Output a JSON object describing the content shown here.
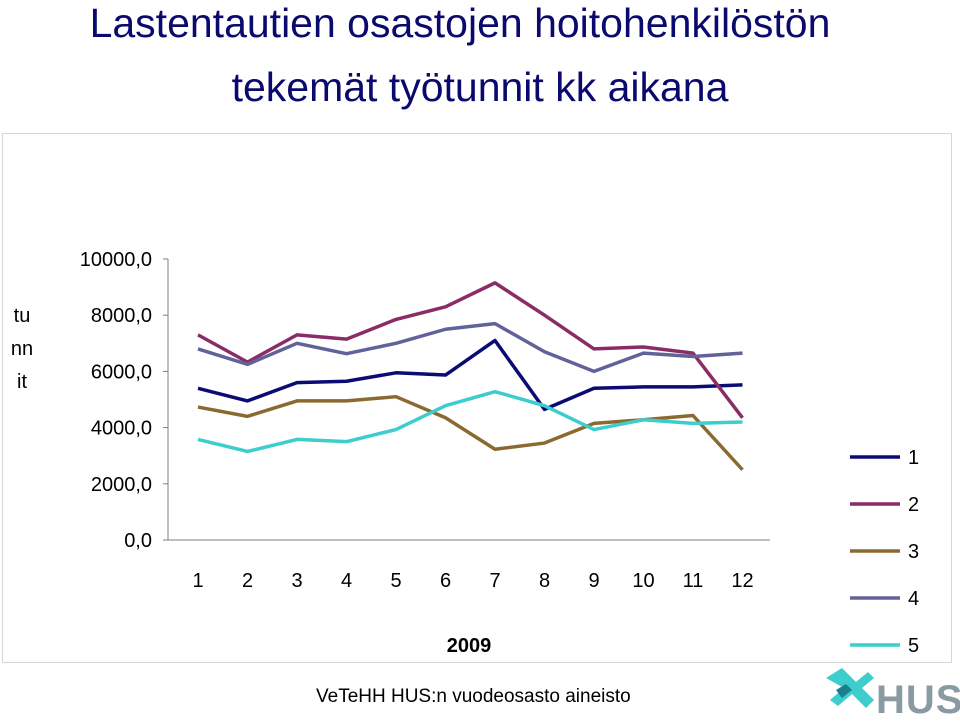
{
  "chart_data": {
    "type": "line",
    "title": "Lastentautien osastojen hoitohenkilöstön tekemät työtunnit kk aikana",
    "title_line1": "Lastentautien osastojen hoitohenkilöstön",
    "title_line2": "tekemät työtunnit kk aikana",
    "xlabel": "2009",
    "ylabel": "tunnit",
    "x": [
      1,
      2,
      3,
      4,
      5,
      6,
      7,
      8,
      9,
      10,
      11,
      12
    ],
    "ylim": [
      0,
      10000
    ],
    "yticks": [
      "0,0",
      "2000,0",
      "4000,0",
      "6000,0",
      "8000,0",
      "10000,0"
    ],
    "grid": false,
    "legend_position": "right",
    "series": [
      {
        "name": "1",
        "color": "#0b0b74",
        "values": [
          5400,
          4950,
          5600,
          5650,
          5950,
          5870,
          7100,
          4650,
          5400,
          5450,
          5450,
          5520
        ]
      },
      {
        "name": "2",
        "color": "#8a2c66",
        "values": [
          7300,
          6330,
          7300,
          7150,
          7850,
          8300,
          9150,
          8000,
          6800,
          6870,
          6650,
          4350
        ]
      },
      {
        "name": "3",
        "color": "#8a6a30",
        "values": [
          4730,
          4400,
          4950,
          4950,
          5100,
          4350,
          3230,
          3450,
          4150,
          4280,
          4430,
          2500
        ]
      },
      {
        "name": "4",
        "color": "#62629b",
        "values": [
          6800,
          6250,
          7000,
          6630,
          7000,
          7500,
          7700,
          6700,
          6000,
          6650,
          6530,
          6650
        ]
      },
      {
        "name": "5",
        "color": "#3ccdcc",
        "values": [
          3580,
          3150,
          3580,
          3500,
          3930,
          4780,
          5280,
          4780,
          3930,
          4280,
          4150,
          4200
        ]
      }
    ]
  },
  "footer": "VeTeHH HUS:n vuodeosasto aineisto",
  "logo_text": "HUS"
}
